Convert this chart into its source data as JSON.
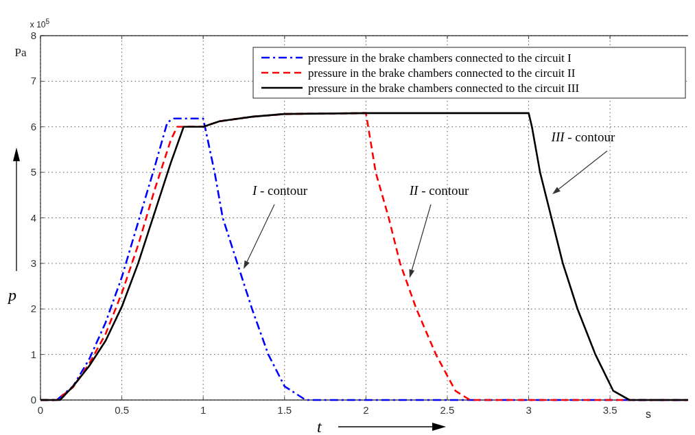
{
  "chart_data": {
    "type": "line",
    "xlabel": "t",
    "ylabel": "p",
    "xlim": [
      0,
      3.98
    ],
    "xticks": [
      0,
      0.5,
      1,
      1.5,
      2,
      2.5,
      3,
      3.5
    ],
    "ylim": [
      0,
      8
    ],
    "yticks": [
      0,
      1,
      2,
      3,
      4,
      5,
      6,
      7,
      8
    ],
    "grid": true,
    "legend": "top right",
    "marker": "none",
    "series": [
      {
        "name": "pressure in the brake chambers connected to the circuit I",
        "color": "#0000ff",
        "line_style": "dashdot",
        "x": [
          0,
          0.1,
          0.2,
          0.3,
          0.4,
          0.5,
          0.6,
          0.7,
          0.78,
          0.82,
          1.0,
          1.07,
          1.12,
          1.21,
          1.3,
          1.4,
          1.5,
          1.63,
          3.98
        ],
        "values": [
          0,
          0,
          0.3,
          0.9,
          1.7,
          2.7,
          3.9,
          5.1,
          6.1,
          6.18,
          6.18,
          5,
          4,
          3,
          2,
          1,
          0.3,
          0,
          0
        ]
      },
      {
        "name": "pressure in the brake chambers connected to the circuit II",
        "color": "#ff0000",
        "line_style": "dashed",
        "x": [
          0,
          0.1,
          0.2,
          0.3,
          0.4,
          0.5,
          0.6,
          0.7,
          0.8,
          0.84,
          1.0,
          1.1,
          1.3,
          1.5,
          2.0,
          2.06,
          2.14,
          2.21,
          2.31,
          2.43,
          2.55,
          2.64,
          3.98
        ],
        "values": [
          0,
          0,
          0.28,
          0.8,
          1.45,
          2.35,
          3.4,
          4.6,
          5.7,
          6.0,
          6.0,
          6.12,
          6.22,
          6.28,
          6.3,
          5,
          4,
          3,
          2,
          1,
          0.2,
          0,
          0
        ]
      },
      {
        "name": "pressure in the brake chambers connected to the circuit III",
        "color": "#000000",
        "line_style": "solid",
        "x": [
          0,
          0.12,
          0.2,
          0.3,
          0.4,
          0.5,
          0.6,
          0.7,
          0.8,
          0.88,
          1.0,
          1.1,
          1.3,
          1.5,
          2.0,
          3.0,
          3.02,
          3.07,
          3.14,
          3.21,
          3.3,
          3.41,
          3.52,
          3.62,
          3.98
        ],
        "values": [
          0,
          0,
          0.3,
          0.75,
          1.3,
          2.05,
          3.0,
          4.1,
          5.2,
          6.0,
          6.0,
          6.12,
          6.22,
          6.28,
          6.3,
          6.3,
          6,
          5,
          4,
          3,
          2,
          1,
          0.2,
          0,
          0
        ]
      }
    ],
    "annotations": [
      "x 10$^{5}$",
      "Pa",
      "s",
      "I - contour",
      "II - contour",
      "III - contour"
    ]
  }
}
